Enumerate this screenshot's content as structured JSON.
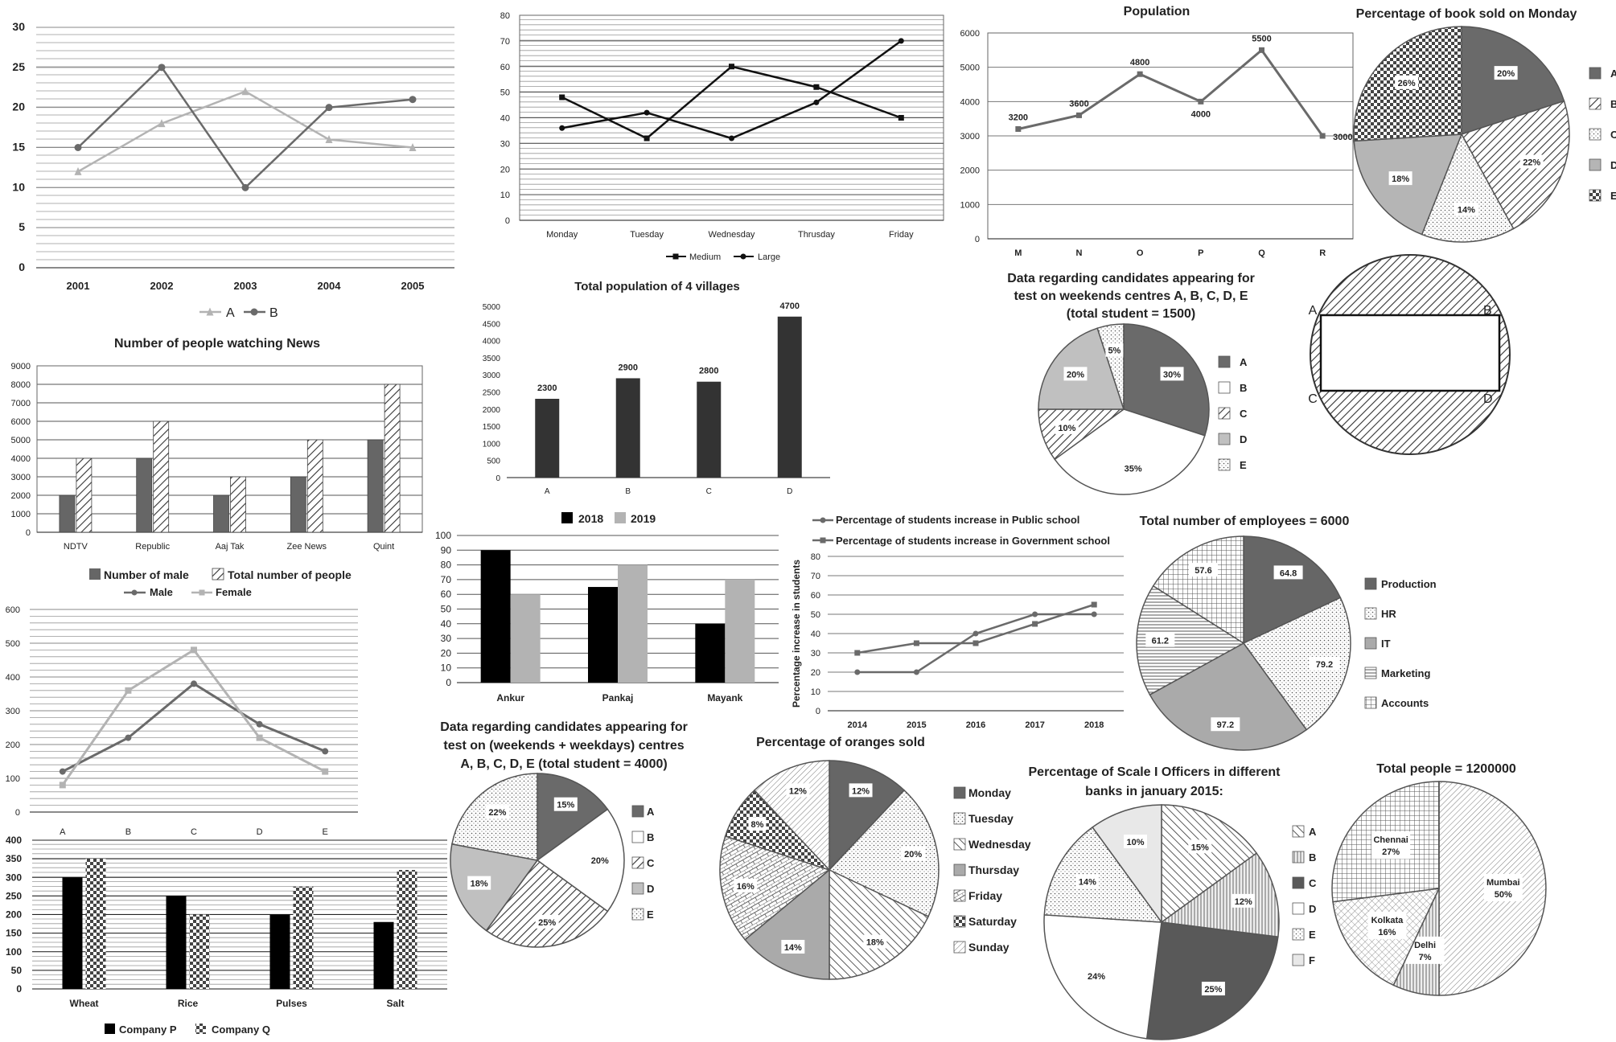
{
  "chart_data": [
    {
      "id": "ab_line",
      "type": "line",
      "title": "",
      "categories": [
        "2001",
        "2002",
        "2003",
        "2004",
        "2005"
      ],
      "series": [
        {
          "name": "A",
          "values": [
            12,
            18,
            22,
            16,
            15
          ],
          "color": "#b3b3b3",
          "marker": "triangle"
        },
        {
          "name": "B",
          "values": [
            15,
            25,
            10,
            20,
            21
          ],
          "color": "#6a6a6a",
          "marker": "circle"
        }
      ],
      "ylim": [
        0,
        30
      ],
      "yticks": [
        0,
        5,
        10,
        15,
        20,
        25,
        30
      ],
      "grid": true,
      "legend": "bottom"
    },
    {
      "id": "medium_large",
      "type": "line",
      "title": "",
      "categories": [
        "Monday",
        "Tuesday",
        "Wednesday",
        "Thrusday",
        "Friday"
      ],
      "series": [
        {
          "name": "Medium",
          "values": [
            48,
            32,
            60,
            52,
            40
          ],
          "color": "#111111",
          "marker": "square"
        },
        {
          "name": "Large",
          "values": [
            36,
            42,
            32,
            46,
            70
          ],
          "color": "#111111",
          "marker": "circle"
        }
      ],
      "ylim": [
        0,
        80
      ],
      "yticks": [
        0,
        10,
        20,
        30,
        40,
        50,
        60,
        70,
        80
      ],
      "grid": true,
      "legend": "bottom"
    },
    {
      "id": "population",
      "type": "line",
      "title": "Population",
      "categories": [
        "M",
        "N",
        "O",
        "P",
        "Q",
        "R"
      ],
      "series": [
        {
          "name": "",
          "values": [
            3200,
            3600,
            4800,
            4000,
            5500,
            3000
          ],
          "color": "#6a6a6a",
          "marker": "square"
        }
      ],
      "data_labels": [
        "3200",
        "3600",
        "4800",
        "4000",
        "5500",
        "3000"
      ],
      "ylim": [
        0,
        6000
      ],
      "yticks": [
        0,
        1000,
        2000,
        3000,
        4000,
        5000,
        6000
      ],
      "grid": true
    },
    {
      "id": "books",
      "type": "pie",
      "title": "Percentage of book sold on Monday",
      "labels": [
        "A",
        "B",
        "C",
        "D",
        "E"
      ],
      "values": [
        20,
        22,
        14,
        18,
        26
      ],
      "value_labels": [
        "20%",
        "22%",
        "14%",
        "18%",
        "26%"
      ],
      "fills": [
        "#6a6a6a",
        "diag",
        "dots",
        "#b5b5b5",
        "check"
      ],
      "legend": "right"
    },
    {
      "id": "villages",
      "type": "bar",
      "title": "Total population of 4 villages",
      "categories": [
        "A",
        "B",
        "C",
        "D"
      ],
      "values": [
        2300,
        2900,
        2800,
        4700
      ],
      "data_labels": [
        "2300",
        "2900",
        "2800",
        "4700"
      ],
      "ylim": [
        0,
        5000
      ],
      "yticks": [
        0,
        500,
        1000,
        1500,
        2000,
        2500,
        3000,
        3500,
        4000,
        4500,
        5000
      ]
    },
    {
      "id": "weekend",
      "type": "pie",
      "title_lines": [
        "Data regarding candidates appearing for",
        "test on weekends centres A, B, C, D, E",
        "(total student = 1500)"
      ],
      "labels": [
        "A",
        "B",
        "C",
        "D",
        "E"
      ],
      "values": [
        30,
        35,
        10,
        20,
        5
      ],
      "value_labels": [
        "30%",
        "35%",
        "10%",
        "20%",
        "5%"
      ],
      "fills": [
        "#6a6a6a",
        "#ffffff",
        "diag",
        "#c0c0c0",
        "dots"
      ],
      "legend": "right"
    },
    {
      "id": "news",
      "type": "bar",
      "title": "Number of people watching News",
      "categories": [
        "NDTV",
        "Republic",
        "Aaj Tak",
        "Zee News",
        "Quint"
      ],
      "series": [
        {
          "name": "Number of male",
          "values": [
            2000,
            4000,
            2000,
            3000,
            5000
          ],
          "fill": "#666666"
        },
        {
          "name": "Total number of people",
          "values": [
            4000,
            6000,
            3000,
            5000,
            8000
          ],
          "fill": "diag"
        }
      ],
      "ylim": [
        0,
        9000
      ],
      "yticks": [
        0,
        1000,
        2000,
        3000,
        4000,
        5000,
        6000,
        7000,
        8000,
        9000
      ],
      "legend": "bottom"
    },
    {
      "id": "ankur",
      "type": "bar",
      "title": "",
      "categories": [
        "Ankur",
        "Pankaj",
        "Mayank"
      ],
      "series": [
        {
          "name": "2018",
          "values": [
            90,
            65,
            40
          ],
          "fill": "#000000"
        },
        {
          "name": "2019",
          "values": [
            60,
            80,
            70
          ],
          "fill": "#b3b3b3"
        }
      ],
      "ylim": [
        0,
        100
      ],
      "yticks": [
        0,
        10,
        20,
        30,
        40,
        50,
        60,
        70,
        80,
        90,
        100
      ],
      "legend": "top"
    },
    {
      "id": "schools",
      "type": "line",
      "title": "",
      "ylabel": "Percentage increase in students",
      "categories": [
        "2014",
        "2015",
        "2016",
        "2017",
        "2018"
      ],
      "series": [
        {
          "name": "Percentage of students increase in Public school",
          "values": [
            20,
            20,
            40,
            50,
            50
          ],
          "color": "#6a6a6a",
          "marker": "circle"
        },
        {
          "name": "Percentage of students increase in Government school",
          "values": [
            30,
            35,
            35,
            45,
            55
          ],
          "color": "#6a6a6a",
          "marker": "square"
        }
      ],
      "ylim": [
        0,
        80
      ],
      "yticks": [
        0,
        10,
        20,
        30,
        40,
        50,
        60,
        70,
        80
      ],
      "grid": true,
      "legend": "top"
    },
    {
      "id": "employees",
      "type": "pie",
      "title": "Total number of employees = 6000",
      "labels": [
        "Production",
        "HR",
        "IT",
        "Marketing",
        "Accounts"
      ],
      "values": [
        64.8,
        79.2,
        97.2,
        61.2,
        57.6
      ],
      "value_labels": [
        "64.8",
        "79.2",
        "97.2",
        "61.2",
        "57.6"
      ],
      "fills": [
        "#666666",
        "dots",
        "#aaaaaa",
        "hlines",
        "grid"
      ],
      "legend": "right"
    },
    {
      "id": "male_female",
      "type": "line",
      "title": "",
      "categories": [
        "A",
        "B",
        "C",
        "D",
        "E"
      ],
      "series": [
        {
          "name": "Male",
          "values": [
            120,
            220,
            380,
            260,
            180
          ],
          "color": "#6a6a6a",
          "marker": "circle"
        },
        {
          "name": "Female",
          "values": [
            80,
            360,
            480,
            220,
            120
          ],
          "color": "#b3b3b3",
          "marker": "square"
        }
      ],
      "ylim": [
        0,
        600
      ],
      "yticks": [
        0,
        100,
        200,
        300,
        400,
        500,
        600
      ],
      "grid": true,
      "legend": "top"
    },
    {
      "id": "companies",
      "type": "bar",
      "title": "",
      "categories": [
        "Wheat",
        "Rice",
        "Pulses",
        "Salt"
      ],
      "series": [
        {
          "name": "Company P",
          "values": [
            300,
            250,
            200,
            180
          ],
          "fill": "#000000"
        },
        {
          "name": "Company Q",
          "values": [
            350,
            200,
            275,
            320
          ],
          "fill": "check"
        }
      ],
      "ylim": [
        0,
        400
      ],
      "yticks": [
        0,
        50,
        100,
        150,
        200,
        250,
        300,
        350,
        400
      ],
      "legend": "bottom"
    },
    {
      "id": "all_week",
      "type": "pie",
      "title_lines": [
        "Data regarding candidates appearing for",
        "test on (weekends + weekdays) centres",
        "A, B, C, D, E (total student = 4000)"
      ],
      "labels": [
        "A",
        "B",
        "C",
        "D",
        "E"
      ],
      "values": [
        15,
        20,
        25,
        18,
        22
      ],
      "value_labels": [
        "15%",
        "20%",
        "25%",
        "18%",
        "22%"
      ],
      "fills": [
        "#6a6a6a",
        "#ffffff",
        "diag",
        "#c0c0c0",
        "dots"
      ],
      "legend": "right"
    },
    {
      "id": "oranges",
      "type": "pie",
      "title": "Percentage of oranges sold",
      "labels": [
        "Monday",
        "Tuesday",
        "Wednesday",
        "Thursday",
        "Friday",
        "Saturday",
        "Sunday"
      ],
      "values": [
        12,
        20,
        18,
        14,
        16,
        8,
        12
      ],
      "value_labels": [
        "12%",
        "20%",
        "18%",
        "14%",
        "16%",
        "8%",
        "12%"
      ],
      "fills": [
        "#666666",
        "dots",
        "diagb",
        "#aaaaaa",
        "brick",
        "check",
        "hatch"
      ],
      "legend": "right"
    },
    {
      "id": "scale1",
      "type": "pie",
      "title_lines": [
        "Percentage of Scale I Officers in different",
        "banks in january 2015:"
      ],
      "labels": [
        "A",
        "B",
        "C",
        "D",
        "E",
        "F"
      ],
      "values": [
        15,
        12,
        25,
        24,
        14,
        10
      ],
      "value_labels": [
        "15%",
        "12%",
        "25%",
        "24%",
        "14%",
        "10%"
      ],
      "fills": [
        "diagb",
        "vlines",
        "#595959",
        "#ffffff",
        "dots",
        "#e8e8e8"
      ],
      "legend": "right"
    },
    {
      "id": "people",
      "type": "pie",
      "title": "Total people = 1200000",
      "labels": [
        "Mumbai",
        "Delhi",
        "Kolkata",
        "Chennai"
      ],
      "values": [
        50,
        7,
        16,
        27
      ],
      "value_labels": [
        "50%",
        "7%",
        "16%",
        "27%"
      ],
      "fills": [
        "hatch",
        "vlines",
        "cross",
        "grid"
      ]
    }
  ],
  "diagram": {
    "corner_labels": [
      "A",
      "B",
      "C",
      "D"
    ]
  }
}
